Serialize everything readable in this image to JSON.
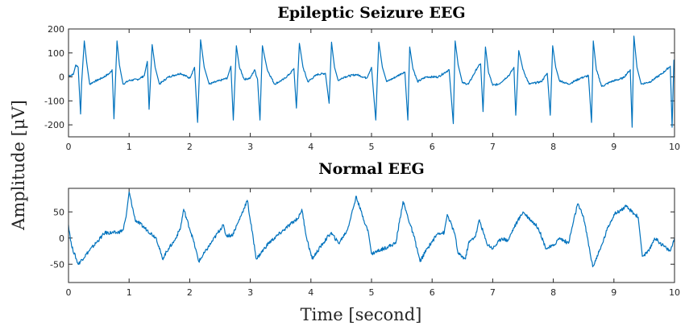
{
  "figure": {
    "ylabel": "Amplitude [μV]",
    "xlabel": "Time [second]",
    "line_color": "#0072BD"
  },
  "chart_data": [
    {
      "type": "line",
      "title": "Epileptic Seizure EEG",
      "xlabel": "Time [second]",
      "ylabel": "Amplitude [μV]",
      "xlim": [
        0,
        10
      ],
      "ylim": [
        -250,
        200
      ],
      "xticks": [
        0,
        1,
        2,
        3,
        4,
        5,
        6,
        7,
        8,
        9,
        10
      ],
      "yticks": [
        200,
        100,
        0,
        -100,
        -200
      ],
      "ytick_labels": [
        "200",
        "100",
        "0",
        "-100",
        "-200"
      ],
      "grid": false,
      "legend": null,
      "series": [
        {
          "name": "Epileptic Seizure EEG",
          "x": [
            0.0,
            0.08,
            0.12,
            0.16,
            0.2,
            0.215,
            0.26,
            0.3,
            0.35,
            0.42,
            0.55,
            0.68,
            0.72,
            0.75,
            0.8,
            0.84,
            0.9,
            1.0,
            1.15,
            1.25,
            1.3,
            1.33,
            1.38,
            1.43,
            1.5,
            1.65,
            1.85,
            2.0,
            2.08,
            2.13,
            2.18,
            2.24,
            2.32,
            2.5,
            2.62,
            2.68,
            2.72,
            2.77,
            2.82,
            2.9,
            3.0,
            3.07,
            3.12,
            3.16,
            3.2,
            3.28,
            3.4,
            3.55,
            3.66,
            3.72,
            3.76,
            3.81,
            3.87,
            3.95,
            4.1,
            4.24,
            4.3,
            4.34,
            4.39,
            4.45,
            4.55,
            4.75,
            4.92,
            5.0,
            5.07,
            5.12,
            5.18,
            5.25,
            5.4,
            5.5,
            5.55,
            5.6,
            5.63,
            5.68,
            5.76,
            5.9,
            6.1,
            6.28,
            6.35,
            6.38,
            6.43,
            6.5,
            6.6,
            6.75,
            6.8,
            6.84,
            6.88,
            6.93,
            7.0,
            7.1,
            7.28,
            7.35,
            7.38,
            7.43,
            7.5,
            7.6,
            7.8,
            7.9,
            7.95,
            7.99,
            8.04,
            8.1,
            8.25,
            8.45,
            8.58,
            8.63,
            8.66,
            8.71,
            8.8,
            8.95,
            9.15,
            9.27,
            9.3,
            9.33,
            9.38,
            9.45,
            9.6,
            9.8,
            9.93,
            9.96,
            9.99,
            10.0
          ],
          "y": [
            5,
            10,
            50,
            40,
            -155,
            -30,
            150,
            60,
            -30,
            -20,
            -5,
            15,
            30,
            -175,
            150,
            50,
            -30,
            -15,
            -10,
            5,
            65,
            -135,
            135,
            40,
            -30,
            0,
            15,
            -5,
            40,
            -190,
            155,
            40,
            -30,
            -15,
            -5,
            45,
            -180,
            130,
            40,
            -10,
            -5,
            30,
            -10,
            -180,
            130,
            30,
            -30,
            -10,
            15,
            35,
            -130,
            140,
            40,
            -20,
            10,
            15,
            -110,
            145,
            40,
            -15,
            0,
            10,
            -5,
            40,
            -180,
            145,
            40,
            -20,
            0,
            15,
            20,
            -180,
            125,
            40,
            -20,
            0,
            0,
            30,
            -195,
            150,
            50,
            -25,
            -30,
            40,
            55,
            -145,
            125,
            20,
            -35,
            -30,
            10,
            40,
            -160,
            110,
            30,
            -30,
            -20,
            15,
            -160,
            130,
            40,
            -15,
            -30,
            -5,
            5,
            -190,
            150,
            30,
            -40,
            -20,
            -5,
            30,
            -210,
            170,
            40,
            -30,
            -20,
            15,
            45,
            -210,
            70,
            60
          ]
        }
      ]
    },
    {
      "type": "line",
      "title": "Normal EEG",
      "xlabel": "Time [second]",
      "ylabel": "Amplitude [μV]",
      "xlim": [
        0,
        10
      ],
      "ylim": [
        -85,
        95
      ],
      "xticks": [
        0,
        1,
        2,
        3,
        4,
        5,
        6,
        7,
        8,
        9,
        10
      ],
      "yticks": [
        50,
        0,
        -50
      ],
      "ytick_labels": [
        "50",
        "0",
        "-50"
      ],
      "grid": false,
      "legend": null,
      "series": [
        {
          "name": "Normal EEG",
          "x": [
            0.0,
            0.05,
            0.16,
            0.3,
            0.45,
            0.6,
            0.8,
            0.9,
            0.95,
            1.0,
            1.1,
            1.3,
            1.45,
            1.55,
            1.65,
            1.75,
            1.85,
            1.9,
            2.05,
            2.15,
            2.35,
            2.55,
            2.6,
            2.7,
            2.8,
            2.95,
            3.1,
            3.3,
            3.55,
            3.8,
            3.85,
            3.93,
            4.02,
            4.2,
            4.33,
            4.46,
            4.6,
            4.75,
            4.8,
            4.95,
            5.0,
            5.2,
            5.4,
            5.52,
            5.72,
            5.8,
            5.92,
            6.1,
            6.2,
            6.25,
            6.37,
            6.43,
            6.55,
            6.6,
            6.72,
            6.78,
            6.9,
            7.0,
            7.15,
            7.25,
            7.35,
            7.5,
            7.75,
            7.88,
            8.0,
            8.1,
            8.25,
            8.4,
            8.5,
            8.65,
            8.78,
            8.9,
            9.0,
            9.2,
            9.4,
            9.47,
            9.58,
            9.67,
            9.87,
            9.93,
            10.0
          ],
          "y": [
            25,
            -15,
            -50,
            -30,
            -10,
            10,
            10,
            15,
            40,
            88,
            35,
            15,
            0,
            -40,
            -20,
            -5,
            20,
            55,
            0,
            -45,
            -10,
            25,
            5,
            5,
            30,
            72,
            -40,
            -10,
            15,
            40,
            55,
            0,
            -40,
            -10,
            10,
            -10,
            15,
            80,
            60,
            10,
            -30,
            -20,
            -10,
            70,
            -5,
            -45,
            -20,
            10,
            10,
            45,
            10,
            -30,
            -40,
            -10,
            5,
            35,
            -10,
            -20,
            0,
            -5,
            20,
            50,
            20,
            -20,
            -15,
            0,
            -10,
            65,
            40,
            -55,
            -20,
            20,
            45,
            60,
            40,
            -35,
            -25,
            0,
            -20,
            -25,
            0
          ]
        }
      ]
    }
  ]
}
